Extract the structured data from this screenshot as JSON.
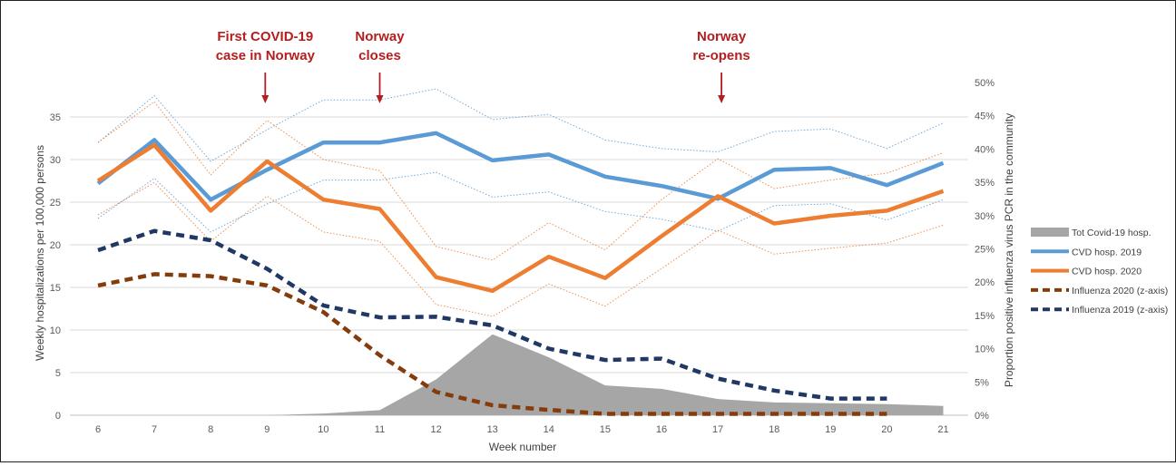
{
  "chart_data": {
    "type": "line",
    "x": [
      6,
      7,
      8,
      9,
      10,
      11,
      12,
      13,
      14,
      15,
      16,
      17,
      18,
      19,
      20,
      21
    ],
    "xlabel": "Week number",
    "ylabel": "Weekly hospitalizations per 100,000 persons",
    "y2label": "Proportion positive influenza virus PCR in the community",
    "ylim": [
      0,
      35
    ],
    "yticks": [
      "0",
      "5",
      "10",
      "15",
      "20",
      "25",
      "30",
      "35"
    ],
    "y2lim": [
      0,
      0.5
    ],
    "y2ticks": [
      "0%",
      "5%",
      "10%",
      "15%",
      "20%",
      "25%",
      "30%",
      "35%",
      "40%",
      "45%",
      "50%"
    ],
    "grid": true,
    "legend_position": "right",
    "series": [
      {
        "name": "Tot Covid-19 hosp.",
        "type": "area",
        "axis": "left",
        "color": "#a6a6a6",
        "values": [
          0,
          0,
          0,
          0,
          0.2,
          0.6,
          4.2,
          9.5,
          6.8,
          3.5,
          3.1,
          1.9,
          1.5,
          1.4,
          1.3,
          1.1
        ]
      },
      {
        "name": "CVD hosp. 2019",
        "type": "line",
        "axis": "left",
        "color": "#5b9bd5",
        "dash": "solid",
        "values": [
          27.2,
          32.3,
          25.3,
          28.8,
          32.0,
          32.0,
          33.1,
          29.9,
          30.6,
          28.0,
          26.9,
          25.4,
          28.8,
          29.0,
          27.0,
          29.6
        ]
      },
      {
        "name": "CVD hosp. 2020",
        "type": "line",
        "axis": "left",
        "color": "#ed7d31",
        "dash": "solid",
        "values": [
          27.5,
          31.7,
          24.0,
          29.8,
          25.3,
          24.2,
          16.2,
          14.6,
          18.6,
          16.1,
          21.0,
          25.7,
          22.5,
          23.4,
          24.0,
          26.3
        ]
      },
      {
        "name": "Influenza 2020 (z-axis)",
        "type": "line",
        "axis": "right",
        "color": "#843c0c",
        "dash": "dashed",
        "values": [
          0.195,
          0.212,
          0.209,
          0.195,
          0.155,
          0.09,
          0.035,
          0.015,
          0.008,
          0.002,
          0.002,
          0.002,
          0.002,
          0.002,
          0.002,
          null
        ]
      },
      {
        "name": "Influenza 2019 (z-axis)",
        "type": "line",
        "axis": "right",
        "color": "#1f3864",
        "dash": "dashed",
        "values": [
          0.248,
          0.277,
          0.263,
          0.22,
          0.165,
          0.147,
          0.148,
          0.135,
          0.1,
          0.083,
          0.085,
          0.055,
          0.037,
          0.025,
          0.025,
          null
        ]
      },
      {
        "name": "",
        "type": "line",
        "axis": "left",
        "color": "#5b9bd5",
        "dash": "dotted",
        "thin": true,
        "values": [
          32.0,
          37.5,
          29.8,
          33.5,
          37.0,
          37.0,
          38.3,
          34.7,
          35.3,
          32.3,
          31.3,
          30.9,
          33.3,
          33.6,
          31.3,
          34.3
        ]
      },
      {
        "name": "",
        "type": "line",
        "axis": "left",
        "color": "#5b9bd5",
        "dash": "dotted",
        "thin": true,
        "values": [
          23.1,
          27.8,
          21.5,
          24.8,
          27.6,
          27.6,
          28.5,
          25.6,
          26.2,
          23.9,
          23.0,
          21.6,
          24.6,
          24.8,
          22.9,
          25.3
        ]
      },
      {
        "name": "",
        "type": "line",
        "axis": "left",
        "color": "#ed7d31",
        "dash": "dotted",
        "thin": true,
        "values": [
          32.0,
          36.8,
          28.2,
          34.6,
          30.0,
          28.7,
          19.8,
          18.2,
          22.6,
          19.4,
          25.3,
          30.1,
          26.6,
          27.6,
          28.4,
          30.8
        ]
      },
      {
        "name": "",
        "type": "line",
        "axis": "left",
        "color": "#ed7d31",
        "dash": "dotted",
        "thin": true,
        "values": [
          23.5,
          27.3,
          20.4,
          25.7,
          21.5,
          20.4,
          13.0,
          11.6,
          15.4,
          12.8,
          17.2,
          21.7,
          18.9,
          19.6,
          20.2,
          22.3
        ]
      }
    ],
    "annotations": [
      {
        "lines": [
          "First COVID-19",
          "case in Norway"
        ],
        "x": 9
      },
      {
        "lines": [
          "Norway",
          "closes"
        ],
        "x": 11
      },
      {
        "lines": [
          "Norway",
          "re-opens"
        ],
        "x": 17
      }
    ]
  }
}
